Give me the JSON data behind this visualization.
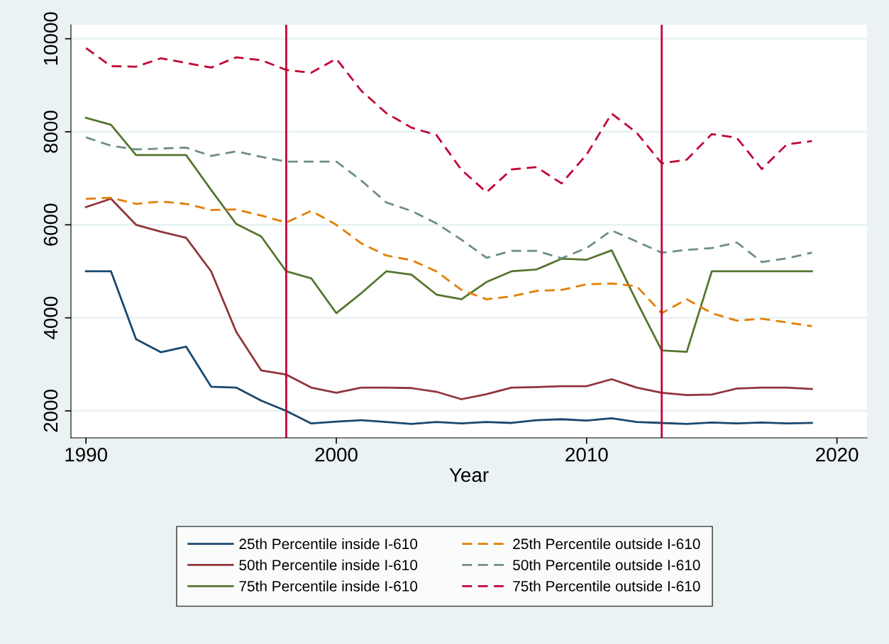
{
  "chart_data": {
    "type": "line",
    "xlabel": "Year",
    "x": [
      1990,
      1991,
      1992,
      1993,
      1994,
      1995,
      1996,
      1997,
      1998,
      1999,
      2000,
      2001,
      2002,
      2003,
      2004,
      2005,
      2006,
      2007,
      2008,
      2009,
      2010,
      2011,
      2012,
      2013,
      2014,
      2015,
      2016,
      2017,
      2018,
      2019
    ],
    "xlim": [
      1989.4,
      2021.2
    ],
    "xticks": [
      1990,
      2000,
      2010,
      2020
    ],
    "ylim": [
      1420,
      10300
    ],
    "yticks": [
      2000,
      4000,
      6000,
      8000,
      10000
    ],
    "grid": "y",
    "legend": "bottom",
    "marker": "none",
    "series": [
      {
        "name": "25th Percentile inside I-610",
        "color": "#1a476f",
        "line_style": "solid",
        "values": [
          5000,
          5000,
          3540,
          3260,
          3380,
          2520,
          2500,
          2220,
          2000,
          1730,
          1770,
          1800,
          1760,
          1720,
          1760,
          1730,
          1760,
          1740,
          1800,
          1820,
          1790,
          1840,
          1760,
          1740,
          1720,
          1750,
          1730,
          1750,
          1730,
          1740
        ]
      },
      {
        "name": "50th Percentile inside I-610",
        "color": "#90353b",
        "line_style": "solid",
        "values": [
          6380,
          6560,
          6000,
          5850,
          5720,
          5000,
          3700,
          2870,
          2780,
          2500,
          2390,
          2500,
          2500,
          2490,
          2410,
          2250,
          2360,
          2500,
          2510,
          2530,
          2530,
          2680,
          2500,
          2390,
          2340,
          2350,
          2480,
          2500,
          2500,
          2470
        ]
      },
      {
        "name": "75th Percentile inside I-610",
        "color": "#55752f",
        "line_style": "solid",
        "values": [
          8300,
          8150,
          7500,
          7500,
          7500,
          6750,
          6020,
          5750,
          5000,
          4850,
          4100,
          4530,
          5000,
          4930,
          4500,
          4400,
          4770,
          5000,
          5040,
          5270,
          5250,
          5450,
          4350,
          3300,
          3270,
          5000,
          5000,
          5000,
          5000,
          5000
        ]
      },
      {
        "name": "25th Percentile outside I-610",
        "color": "#e37e00",
        "line_style": "dashed",
        "values": [
          6560,
          6580,
          6450,
          6500,
          6450,
          6320,
          6330,
          6200,
          6050,
          6300,
          6000,
          5600,
          5340,
          5240,
          5000,
          4600,
          4400,
          4460,
          4580,
          4600,
          4720,
          4740,
          4680,
          4100,
          4400,
          4100,
          3940,
          3980,
          3900,
          3820
        ]
      },
      {
        "name": "50th Percentile outside I-610",
        "color": "#6e8e84",
        "line_style": "dashed",
        "values": [
          7880,
          7700,
          7620,
          7640,
          7660,
          7480,
          7580,
          7460,
          7360,
          7360,
          7360,
          6950,
          6480,
          6300,
          6030,
          5680,
          5290,
          5440,
          5440,
          5280,
          5500,
          5880,
          5640,
          5400,
          5460,
          5500,
          5620,
          5200,
          5280,
          5400
        ]
      },
      {
        "name": "75th Percentile outside I-610",
        "color": "#c10534",
        "line_style": "dashed",
        "values": [
          9800,
          9410,
          9400,
          9580,
          9480,
          9380,
          9600,
          9540,
          9330,
          9270,
          9570,
          8880,
          8400,
          8090,
          7930,
          7180,
          6700,
          7190,
          7240,
          6890,
          7510,
          8390,
          7980,
          7320,
          7400,
          7950,
          7870,
          7200,
          7730,
          7800
        ]
      }
    ],
    "ref_lines": [
      {
        "axis": "x",
        "value": 1998,
        "color": "#c10534"
      },
      {
        "axis": "x",
        "value": 2013,
        "color": "#c10534"
      }
    ]
  }
}
